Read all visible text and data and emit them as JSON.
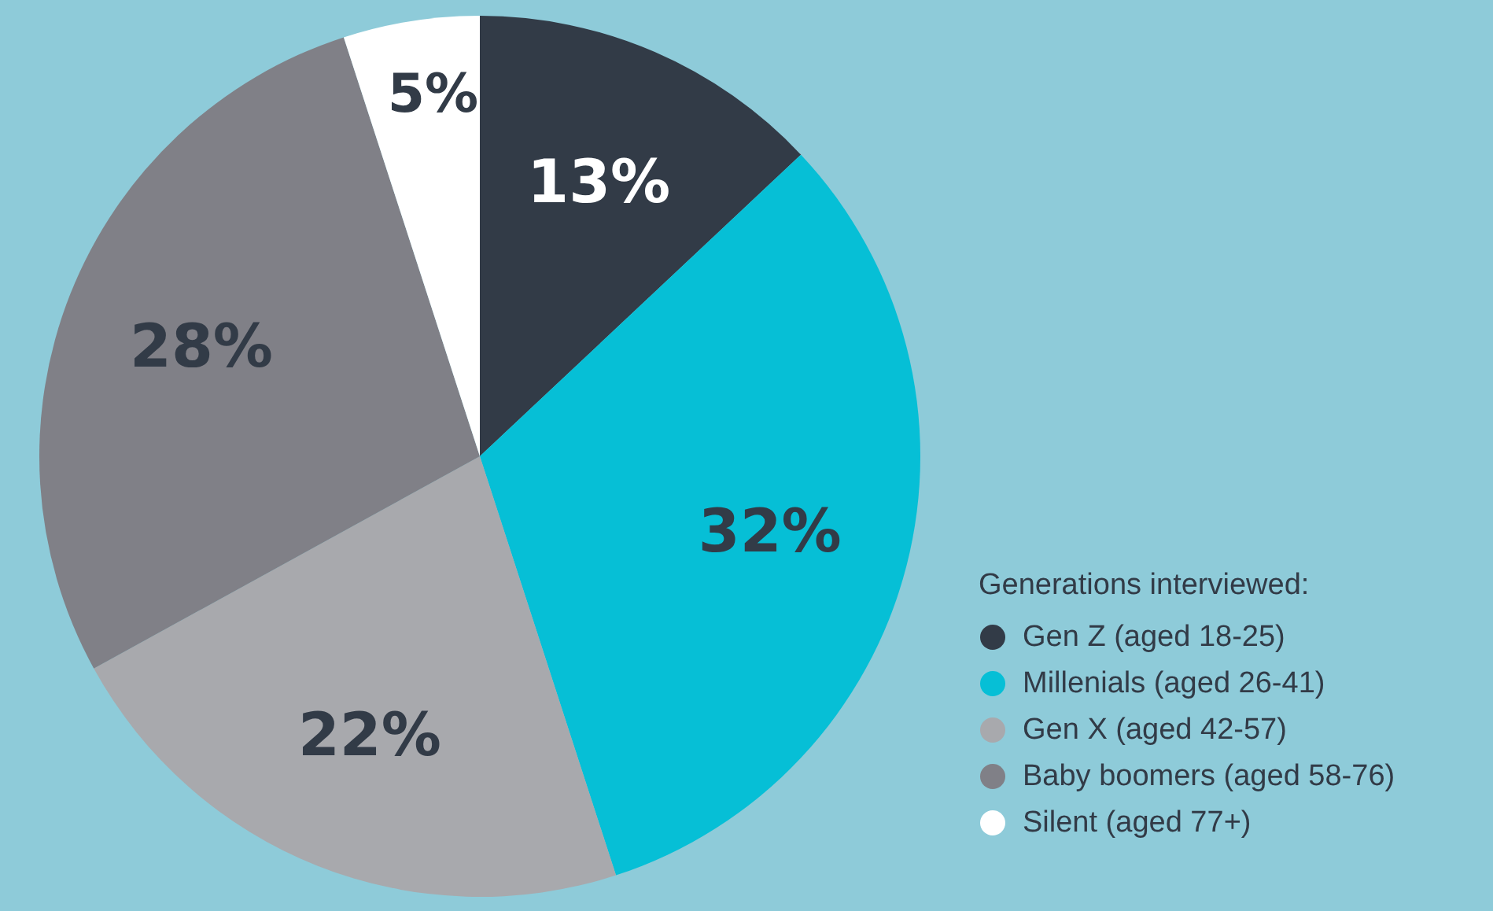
{
  "chart_data": {
    "type": "pie",
    "legend_title": "Generations interviewed:",
    "legend": "bottom right",
    "categories": [
      "Gen Z (aged 18-25)",
      "Millenials (aged 26-41)",
      "Gen X (aged 42-57)",
      "Baby boomers (aged 58-76)",
      "Silent (aged 77+)"
    ],
    "values": [
      13,
      32,
      22,
      28,
      5
    ],
    "value_labels": [
      "13%",
      "32%",
      "22%",
      "28%",
      "5%"
    ],
    "colors": [
      "#323b47",
      "#06bfd6",
      "#a8a9ad",
      "#808087",
      "#ffffff"
    ]
  }
}
